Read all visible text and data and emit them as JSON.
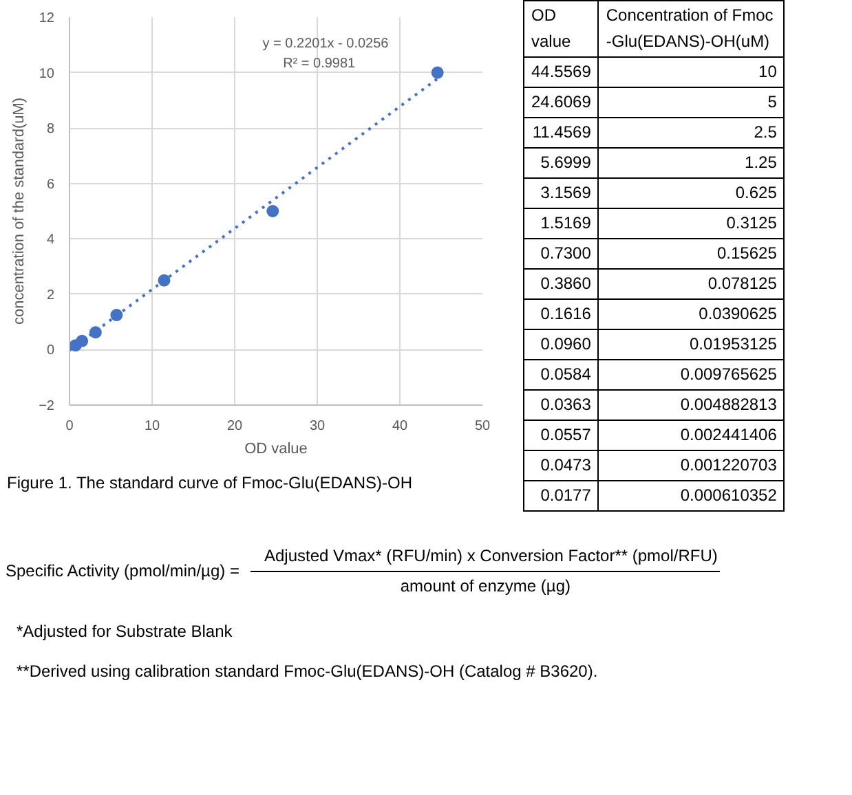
{
  "chart_data": {
    "type": "scatter",
    "xlabel": "OD value",
    "ylabel": "concentration of the standard(uM)",
    "xlim": [
      0,
      50
    ],
    "xticks": [
      0,
      10,
      20,
      30,
      40,
      50
    ],
    "ylim": [
      -2,
      12
    ],
    "yticks": [
      -2,
      0,
      2,
      4,
      6,
      8,
      10,
      12
    ],
    "grid": true,
    "series": [
      {
        "color": "#4472c4",
        "marker": "circle",
        "x": [
          44.5569,
          24.6069,
          11.4569,
          5.6999,
          3.1569,
          1.5169,
          0.73
        ],
        "values": [
          10,
          5,
          2.5,
          1.25,
          0.625,
          0.3125,
          0.15625
        ]
      },
      {
        "type": "line",
        "color": "#4472c4",
        "line_style": "dotted",
        "x": [
          0,
          44.5569
        ],
        "values": [
          -0.0256,
          9.78
        ]
      }
    ],
    "annotations": [
      "y = 0.2201x - 0.0256",
      "R² = 0.9981",
      "OD value",
      "Concentration of Fmoc-Glu(EDANS)-OH(uM)",
      "Figure 1. The standard curve of Fmoc-Glu(EDANS)-OH",
      "Specific Activity (pmol/min/µg) =",
      "Adjusted Vmax* (RFU/min) x Conversion Factor** (pmol/RFU)",
      "amount of enzyme (µg)",
      "*Adjusted for Substrate Blank",
      "**Derived using calibration standard Fmoc-Glu(EDANS)-OH (Catalog # B3620).",
      "44.5569",
      "10",
      "24.6069",
      "5",
      "11.4569",
      "2.5",
      "5.6999",
      "1.25",
      "3.1569",
      "0.625",
      "1.5169",
      "0.3125",
      "0.7300",
      "0.15625",
      "0.3860",
      "0.078125",
      "0.1616",
      "0.0390625",
      "0.0960",
      "0.01953125",
      "0.0584",
      "0.009765625",
      "0.0363",
      "0.004882813",
      "0.0557",
      "0.002441406",
      "0.0473",
      "0.001220703",
      "0.0177",
      "0.000610352"
    ]
  }
}
